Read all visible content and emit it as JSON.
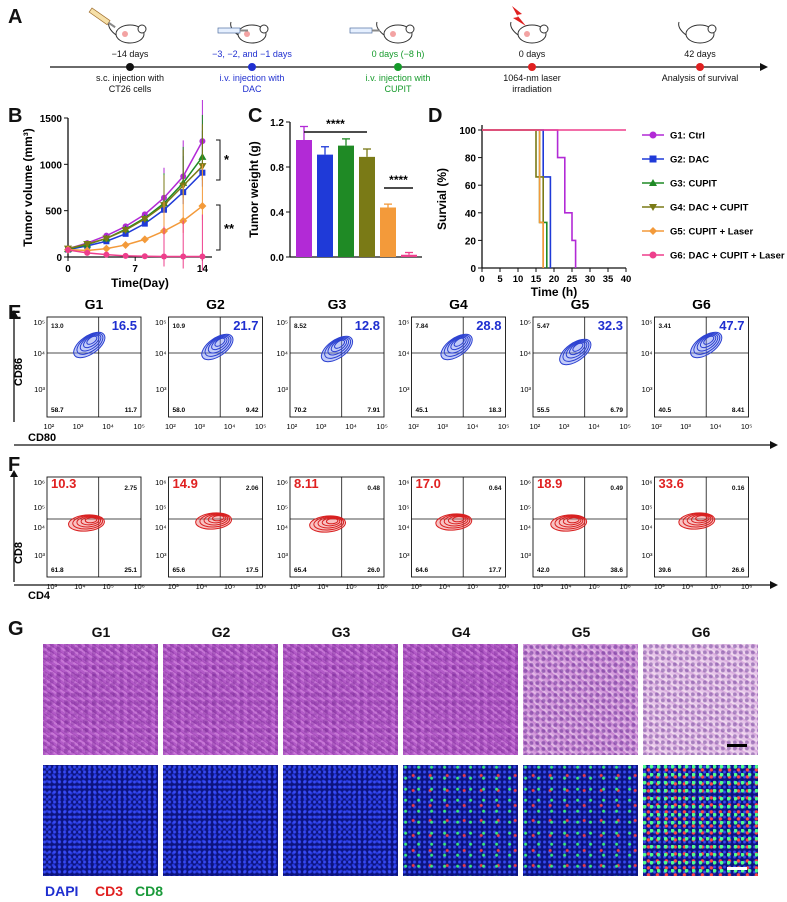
{
  "panels": {
    "a": "A",
    "b": "B",
    "c": "C",
    "d": "D",
    "e": "E",
    "f": "F",
    "g": "G"
  },
  "timeline": {
    "events": [
      {
        "time": "−14 days",
        "desc": "s.c. injection with\nCT26 cells",
        "color": "#111111",
        "dot": "#111111"
      },
      {
        "time": "−3, −2, and −1 days",
        "desc": "i.v. injection with\nDAC",
        "color": "#1f2fd0",
        "dot": "#1f2fd0"
      },
      {
        "time": "0 days (−8 h)",
        "desc": "i.v. injection with\nCUPIT",
        "color": "#159a2a",
        "dot": "#159a2a"
      },
      {
        "time": "0 days",
        "desc": "1064-nm laser\nirradiation",
        "color": "#111111",
        "dot": "#e02020"
      },
      {
        "time": "42 days",
        "desc": "Analysis of survival",
        "color": "#111111",
        "dot": "#e02020"
      }
    ]
  },
  "colors": {
    "G1": "#b22ad6",
    "G2": "#1f3ad8",
    "G3": "#1f8a25",
    "G4": "#7a7a16",
    "G5": "#f39a3a",
    "G6": "#ee3f8c"
  },
  "legend": [
    "G1: Ctrl",
    "G2: DAC",
    "G3: CUPIT",
    "G4: DAC + CUPIT",
    "G5: CUPIT + Laser",
    "G6: DAC + CUPIT + Laser"
  ],
  "chart_data": [
    {
      "type": "line",
      "xlabel": "Time(Day)",
      "ylabel": "Tumor volume (mm³)",
      "ylim": [
        0,
        1500
      ],
      "xticks": [
        "0",
        "7",
        "14"
      ],
      "yticks": [
        "0",
        "500",
        "1000",
        "1500"
      ],
      "x": [
        0,
        2,
        4,
        6,
        8,
        10,
        12,
        14
      ],
      "series": [
        {
          "name": "G1: Ctrl",
          "values": [
            90,
            150,
            230,
            330,
            460,
            640,
            870,
            1250
          ]
        },
        {
          "name": "G2: DAC",
          "values": [
            80,
            120,
            170,
            250,
            360,
            510,
            700,
            910
          ]
        },
        {
          "name": "G3: CUPIT",
          "values": [
            85,
            135,
            200,
            300,
            420,
            580,
            800,
            1080
          ]
        },
        {
          "name": "G4: DAC + CUPIT",
          "values": [
            90,
            140,
            200,
            290,
            410,
            560,
            770,
            980
          ]
        },
        {
          "name": "G5: CUPIT + Laser",
          "values": [
            80,
            70,
            90,
            130,
            190,
            280,
            390,
            550
          ]
        },
        {
          "name": "G6: DAC + CUPIT + Laser",
          "values": [
            75,
            45,
            25,
            12,
            8,
            6,
            5,
            5
          ]
        }
      ],
      "annotations": [
        "*",
        "**"
      ]
    },
    {
      "type": "bar",
      "ylabel": "Tumor weight (g)",
      "ylim": [
        0,
        1.2
      ],
      "yticks": [
        "0.0",
        "0.4",
        "0.8",
        "1.2"
      ],
      "categories": [
        "G1",
        "G2",
        "G3",
        "G4",
        "G5",
        "G6"
      ],
      "values": [
        1.04,
        0.91,
        0.99,
        0.89,
        0.44,
        0.02
      ],
      "errors": [
        0.12,
        0.07,
        0.06,
        0.07,
        0.03,
        0.02
      ],
      "annotations": [
        "****",
        "****"
      ]
    },
    {
      "type": "line",
      "xlabel": "Time (h)",
      "ylabel": "Survial (%)",
      "ylim": [
        0,
        100
      ],
      "xlim": [
        0,
        40
      ],
      "xticks": [
        "0",
        "5",
        "10",
        "15",
        "20",
        "25",
        "30",
        "35",
        "40"
      ],
      "yticks": [
        "0",
        "20",
        "40",
        "60",
        "80",
        "100"
      ],
      "series": [
        {
          "name": "G1: Ctrl",
          "steps": [
            [
              0,
              100
            ],
            [
              21,
              100
            ],
            [
              21,
              80
            ],
            [
              23,
              80
            ],
            [
              23,
              40
            ],
            [
              25,
              40
            ],
            [
              25,
              20
            ],
            [
              26,
              20
            ],
            [
              26,
              0
            ]
          ]
        },
        {
          "name": "G2: DAC",
          "steps": [
            [
              0,
              100
            ],
            [
              17,
              100
            ],
            [
              17,
              66
            ],
            [
              19,
              66
            ],
            [
              19,
              0
            ]
          ]
        },
        {
          "name": "G3: CUPIT",
          "steps": [
            [
              0,
              100
            ],
            [
              16,
              100
            ],
            [
              16,
              33
            ],
            [
              18,
              33
            ],
            [
              18,
              0
            ]
          ]
        },
        {
          "name": "G4: DAC + CUPIT",
          "steps": [
            [
              0,
              100
            ],
            [
              15,
              100
            ],
            [
              15,
              66
            ],
            [
              17,
              66
            ],
            [
              17,
              0
            ]
          ]
        },
        {
          "name": "G5: CUPIT + Laser",
          "steps": [
            [
              0,
              100
            ],
            [
              16,
              100
            ],
            [
              16,
              33
            ],
            [
              17,
              33
            ],
            [
              17,
              0
            ]
          ]
        },
        {
          "name": "G6: DAC + CUPIT + Laser",
          "steps": [
            [
              0,
              100
            ],
            [
              40,
              100
            ]
          ]
        }
      ]
    }
  ],
  "flowE": {
    "ylabel": "CD86",
    "xlabel": "CD80",
    "xticks": [
      "10²",
      "10³",
      "10⁴",
      "10⁵"
    ],
    "yticks": [
      "10⁵",
      "10⁴",
      "10³"
    ],
    "groups": [
      {
        "g": "G1",
        "ul": "13.0",
        "ur": "16.5",
        "ll": "58.7",
        "lr": "11.7"
      },
      {
        "g": "G2",
        "ul": "10.9",
        "ur": "21.7",
        "ll": "58.0",
        "lr": "9.42"
      },
      {
        "g": "G3",
        "ul": "8.52",
        "ur": "12.8",
        "ll": "70.2",
        "lr": "7.91"
      },
      {
        "g": "G4",
        "ul": "7.84",
        "ur": "28.8",
        "ll": "45.1",
        "lr": "18.3"
      },
      {
        "g": "G5",
        "ul": "5.47",
        "ur": "32.3",
        "ll": "55.5",
        "lr": "6.79"
      },
      {
        "g": "G6",
        "ul": "3.41",
        "ur": "47.7",
        "ll": "40.5",
        "lr": "8.41"
      }
    ]
  },
  "flowF": {
    "ylabel": "CD8",
    "xlabel": "CD4",
    "xticks": [
      "10³",
      "10⁴",
      "10⁵",
      "10⁶"
    ],
    "yticks": [
      "10⁶",
      "10⁵",
      "10⁴",
      "10³"
    ],
    "groups": [
      {
        "g": "G1",
        "ul": "10.3",
        "ur": "2.75",
        "ll": "61.8",
        "lr": "25.1"
      },
      {
        "g": "G2",
        "ul": "14.9",
        "ur": "2.06",
        "ll": "65.6",
        "lr": "17.5"
      },
      {
        "g": "G3",
        "ul": "8.11",
        "ur": "0.48",
        "ll": "65.4",
        "lr": "26.0"
      },
      {
        "g": "G4",
        "ul": "17.0",
        "ur": "0.64",
        "ll": "64.6",
        "lr": "17.7"
      },
      {
        "g": "G5",
        "ul": "18.9",
        "ur": "0.49",
        "ll": "42.0",
        "lr": "38.6"
      },
      {
        "g": "G6",
        "ul": "33.6",
        "ur": "0.16",
        "ll": "39.6",
        "lr": "26.6"
      }
    ]
  },
  "histology": {
    "groups": [
      "G1",
      "G2",
      "G3",
      "G4",
      "G5",
      "G6"
    ],
    "stain_legend": [
      {
        "label": "DAPI",
        "color": "#1f2fd0"
      },
      {
        "label": "CD3",
        "color": "#e02020"
      },
      {
        "label": "CD8",
        "color": "#1a9a3a"
      }
    ]
  }
}
